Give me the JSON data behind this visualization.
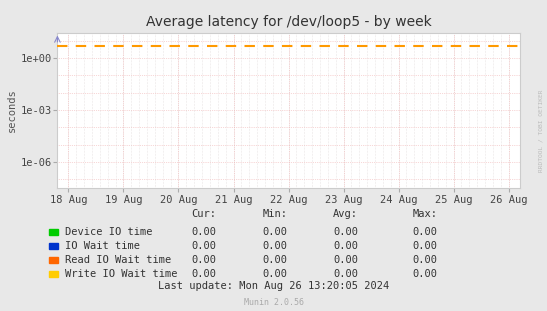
{
  "title": "Average latency for /dev/loop5 - by week",
  "ylabel": "seconds",
  "background_color": "#e8e8e8",
  "plot_bg_color": "#ffffff",
  "grid_color": "#f0b0b0",
  "x_tick_labels": [
    "18 Aug",
    "19 Aug",
    "20 Aug",
    "21 Aug",
    "22 Aug",
    "23 Aug",
    "24 Aug",
    "25 Aug",
    "26 Aug"
  ],
  "x_tick_positions": [
    0,
    1,
    2,
    3,
    4,
    5,
    6,
    7,
    8
  ],
  "y_min": 3e-08,
  "y_max": 30.0,
  "y_ticks": [
    1e-06,
    0.001,
    1.0
  ],
  "y_tick_labels": [
    "1e-06",
    "1e-03",
    "1e+00"
  ],
  "orange_line_y": 5.0,
  "orange_line_color": "#ff9900",
  "legend_entries": [
    {
      "label": "Device IO time",
      "color": "#00cc00"
    },
    {
      "label": "IO Wait time",
      "color": "#0033cc"
    },
    {
      "label": "Read IO Wait time",
      "color": "#ff6600"
    },
    {
      "label": "Write IO Wait time",
      "color": "#ffcc00"
    }
  ],
  "legend_cols": [
    "Cur:",
    "Min:",
    "Avg:",
    "Max:"
  ],
  "legend_values": [
    [
      "0.00",
      "0.00",
      "0.00",
      "0.00"
    ],
    [
      "0.00",
      "0.00",
      "0.00",
      "0.00"
    ],
    [
      "0.00",
      "0.00",
      "0.00",
      "0.00"
    ],
    [
      "0.00",
      "0.00",
      "0.00",
      "0.00"
    ]
  ],
  "last_update_text": "Last update: Mon Aug 26 13:20:05 2024",
  "munin_text": "Munin 2.0.56",
  "rrdtool_text": "RRDTOOL / TOBI OETIKER",
  "title_fontsize": 10,
  "axis_fontsize": 7.5,
  "legend_fontsize": 7.5
}
